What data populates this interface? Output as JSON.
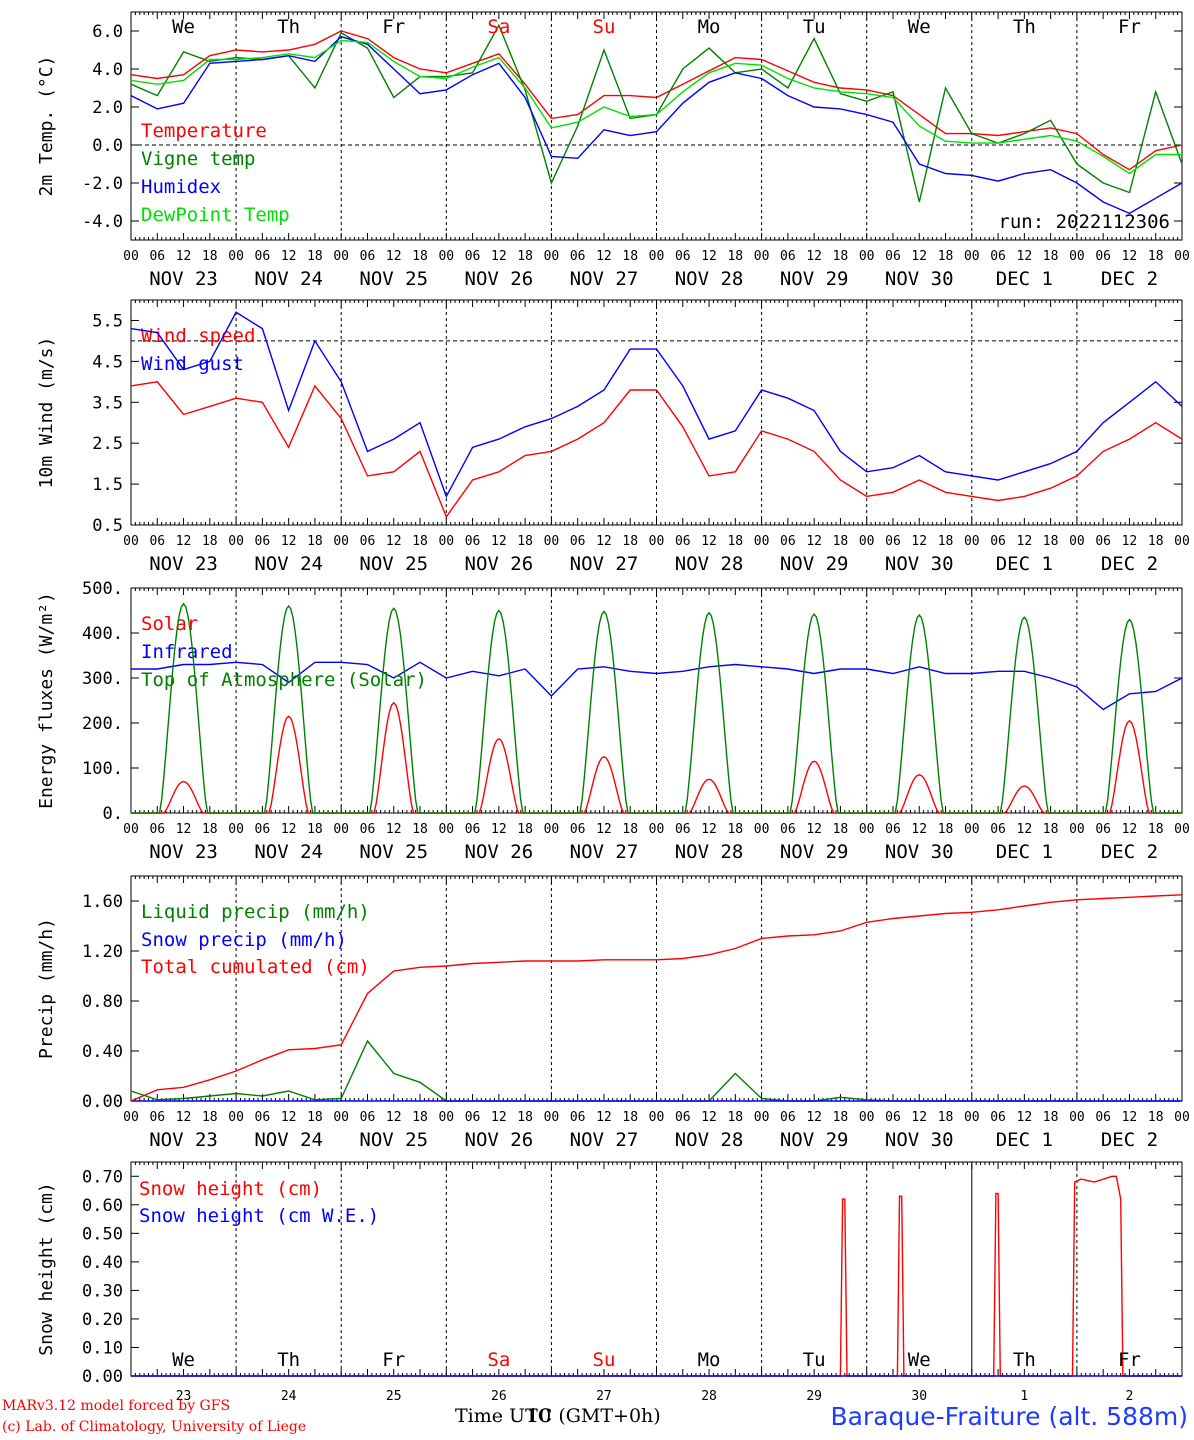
{
  "run_label": "run: 2022112306",
  "station": "Baraque-Fraiture (alt. 588m)",
  "credit_line1": "MARv3.12 model forced by GFS",
  "credit_line2": "(c) Lab. of Climatology, University of Liege",
  "time_axis_label": "Time UTC (GMT+0h)",
  "time_axis_overprint": "10",
  "hour_ticks": [
    "00",
    "06",
    "12",
    "18"
  ],
  "date_labels": [
    "NOV 23",
    "NOV 24",
    "NOV 25",
    "NOV 26",
    "NOV 27",
    "NOV 28",
    "NOV 29",
    "NOV 30",
    "DEC  1",
    "DEC  2"
  ],
  "weekday_labels": [
    "We",
    "Th",
    "Fr",
    "Sa",
    "Su",
    "Mo",
    "Tu",
    "We",
    "Th",
    "Fr"
  ],
  "weekday_colors": [
    "#000000",
    "#000000",
    "#000000",
    "#ff0000",
    "#ff0000",
    "#000000",
    "#000000",
    "#000000",
    "#000000",
    "#000000"
  ],
  "snow_day_numbers": [
    "23",
    "24",
    "25",
    "26",
    "27",
    "28",
    "29",
    "30",
    "1",
    "2"
  ],
  "colors": {
    "red": "#ff0000",
    "green": "#008000",
    "blue": "#0000ff",
    "lightgreen": "#00e000"
  },
  "chart_data": [
    {
      "type": "line",
      "ylabel": "2m Temp. (°C)",
      "ylim": [
        -5,
        7
      ],
      "yticks": [
        -4.0,
        -2.0,
        0.0,
        2.0,
        4.0,
        6.0
      ],
      "ytick_labels": [
        "-4.0",
        "-2.0",
        "0.0",
        "2.0",
        "4.0",
        "6.0"
      ],
      "ref_line": 0.0,
      "x_unit": "hours since NOV 23 00 UTC",
      "x": [
        0,
        6,
        12,
        18,
        24,
        30,
        36,
        42,
        48,
        54,
        60,
        66,
        72,
        78,
        84,
        90,
        96,
        102,
        108,
        114,
        120,
        126,
        132,
        138,
        144,
        150,
        156,
        162,
        168,
        174,
        180,
        186,
        192,
        198,
        204,
        210,
        216,
        222,
        228,
        234,
        240
      ],
      "series": [
        {
          "name": "Temperature",
          "color": "red",
          "values": [
            3.7,
            3.5,
            3.7,
            4.7,
            5.0,
            4.9,
            5.0,
            5.3,
            6.0,
            5.6,
            4.6,
            4.0,
            3.8,
            4.3,
            4.8,
            3.2,
            1.4,
            1.6,
            2.6,
            2.6,
            2.5,
            3.2,
            3.9,
            4.6,
            4.5,
            3.9,
            3.3,
            3.0,
            2.9,
            2.6,
            1.6,
            0.6,
            0.6,
            0.5,
            0.7,
            0.9,
            0.6,
            -0.5,
            -1.3,
            -0.3,
            0.0
          ]
        },
        {
          "name": "Vigne temp",
          "color": "green",
          "values": [
            3.2,
            2.6,
            4.9,
            4.4,
            4.6,
            4.5,
            4.7,
            3.0,
            5.9,
            5.1,
            2.5,
            3.6,
            3.6,
            3.8,
            6.3,
            2.9,
            -2.0,
            1.0,
            5.0,
            1.4,
            1.6,
            4.0,
            5.1,
            3.8,
            4.0,
            3.0,
            5.6,
            2.7,
            2.3,
            2.8,
            -3.0,
            3.0,
            0.6,
            0.1,
            0.6,
            1.3,
            -1.0,
            -2.0,
            -2.5,
            2.8,
            -1.0
          ]
        },
        {
          "name": "Humidex",
          "color": "blue",
          "values": [
            2.6,
            1.9,
            2.2,
            4.3,
            4.4,
            4.5,
            4.7,
            4.4,
            5.7,
            5.3,
            4.0,
            2.7,
            2.9,
            3.7,
            4.3,
            2.5,
            -0.6,
            -0.7,
            0.8,
            0.5,
            0.7,
            2.2,
            3.3,
            3.8,
            3.5,
            2.6,
            2.0,
            1.9,
            1.6,
            1.2,
            -1.0,
            -1.5,
            -1.6,
            -1.9,
            -1.5,
            -1.3,
            -2.0,
            -3.0,
            -3.6,
            -2.8,
            -2.0
          ]
        },
        {
          "name": "DewPoint Temp",
          "color": "lightgreen",
          "values": [
            3.4,
            3.2,
            3.4,
            4.5,
            4.5,
            4.6,
            4.8,
            4.6,
            5.5,
            5.4,
            4.4,
            3.6,
            3.5,
            4.1,
            4.6,
            3.0,
            0.9,
            1.2,
            2.0,
            1.5,
            1.6,
            2.8,
            3.8,
            4.3,
            4.2,
            3.5,
            3.0,
            2.8,
            2.7,
            2.5,
            1.0,
            0.2,
            0.1,
            0.1,
            0.3,
            0.5,
            0.2,
            -0.6,
            -1.5,
            -0.5,
            -0.5
          ]
        }
      ]
    },
    {
      "type": "line",
      "ylabel": "10m Wind (m/s)",
      "ylim": [
        0.5,
        6.0
      ],
      "yticks": [
        0.5,
        1.5,
        2.5,
        3.5,
        4.5,
        5.5
      ],
      "ytick_labels": [
        "0.5",
        "1.5",
        "2.5",
        "3.5",
        "4.5",
        "5.5"
      ],
      "ref_line": 5.0,
      "x_unit": "hours since NOV 23 00 UTC",
      "x": [
        0,
        6,
        12,
        18,
        24,
        30,
        36,
        42,
        48,
        54,
        60,
        66,
        72,
        78,
        84,
        90,
        96,
        102,
        108,
        114,
        120,
        126,
        132,
        138,
        144,
        150,
        156,
        162,
        168,
        174,
        180,
        186,
        192,
        198,
        204,
        210,
        216,
        222,
        228,
        234,
        240
      ],
      "series": [
        {
          "name": "Wind speed",
          "color": "red",
          "values": [
            3.9,
            4.0,
            3.2,
            3.4,
            3.6,
            3.5,
            2.4,
            3.9,
            3.1,
            1.7,
            1.8,
            2.3,
            0.7,
            1.6,
            1.8,
            2.2,
            2.3,
            2.6,
            3.0,
            3.8,
            3.8,
            2.9,
            1.7,
            1.8,
            2.8,
            2.6,
            2.3,
            1.6,
            1.2,
            1.3,
            1.6,
            1.3,
            1.2,
            1.1,
            1.2,
            1.4,
            1.7,
            2.3,
            2.6,
            3.0,
            2.6
          ]
        },
        {
          "name": "Wind gust",
          "color": "blue",
          "values": [
            5.3,
            5.2,
            4.3,
            4.5,
            5.7,
            5.3,
            3.3,
            5.0,
            4.0,
            2.3,
            2.6,
            3.0,
            1.2,
            2.4,
            2.6,
            2.9,
            3.1,
            3.4,
            3.8,
            4.8,
            4.8,
            3.9,
            2.6,
            2.8,
            3.8,
            3.6,
            3.3,
            2.3,
            1.8,
            1.9,
            2.2,
            1.8,
            1.7,
            1.6,
            1.8,
            2.0,
            2.3,
            3.0,
            3.5,
            4.0,
            3.4
          ]
        }
      ]
    },
    {
      "type": "line",
      "ylabel": "Energy fluxes (W/m²)",
      "ylim": [
        0,
        500
      ],
      "yticks": [
        0,
        100,
        200,
        300,
        400,
        500
      ],
      "ytick_labels": [
        "0.",
        "100.",
        "200.",
        "300.",
        "400.",
        "500."
      ],
      "x_unit": "hours since NOV 23 00 UTC",
      "infrared_x": [
        0,
        6,
        12,
        18,
        24,
        30,
        36,
        42,
        48,
        54,
        60,
        66,
        72,
        78,
        84,
        90,
        96,
        102,
        108,
        114,
        120,
        126,
        132,
        138,
        144,
        150,
        156,
        162,
        168,
        174,
        180,
        186,
        192,
        198,
        204,
        210,
        216,
        222,
        228,
        234,
        240
      ],
      "series": [
        {
          "name": "Solar",
          "color": "red",
          "peaks": [
            70,
            215,
            245,
            165,
            125,
            75,
            115,
            85,
            60,
            205
          ]
        },
        {
          "name": "Infrared",
          "color": "blue",
          "values": [
            320,
            320,
            330,
            330,
            335,
            330,
            290,
            335,
            335,
            330,
            300,
            335,
            300,
            315,
            305,
            320,
            260,
            320,
            325,
            315,
            310,
            315,
            325,
            330,
            325,
            320,
            310,
            320,
            320,
            310,
            325,
            310,
            310,
            315,
            315,
            300,
            280,
            230,
            265,
            270,
            300
          ]
        },
        {
          "name": "Top of Atmosphere (Solar)",
          "color": "green",
          "peaks": [
            465,
            460,
            455,
            450,
            448,
            445,
            442,
            440,
            435,
            430
          ]
        }
      ]
    },
    {
      "type": "line",
      "ylabel": "Precip (mm/h)",
      "ylim": [
        0,
        1.8
      ],
      "yticks": [
        0,
        0.4,
        0.8,
        1.2,
        1.6
      ],
      "ytick_labels": [
        "0.00",
        "0.40",
        "0.80",
        "1.20",
        "1.60"
      ],
      "x_unit": "hours since NOV 23 00 UTC",
      "x": [
        0,
        6,
        12,
        18,
        24,
        30,
        36,
        42,
        48,
        54,
        60,
        66,
        72,
        78,
        84,
        90,
        96,
        102,
        108,
        114,
        120,
        126,
        132,
        138,
        144,
        150,
        156,
        162,
        168,
        174,
        180,
        186,
        192,
        198,
        204,
        210,
        216,
        222,
        228,
        234,
        240
      ],
      "series": [
        {
          "name": "Liquid precip (mm/h)",
          "color": "green",
          "values": [
            0.08,
            0.01,
            0.02,
            0.04,
            0.06,
            0.04,
            0.08,
            0.01,
            0.02,
            0.48,
            0.22,
            0.15,
            0.0,
            0.0,
            0.0,
            0.0,
            0.0,
            0.0,
            0.0,
            0.0,
            0.0,
            0.0,
            0.0,
            0.22,
            0.02,
            0.0,
            0.0,
            0.03,
            0.01,
            0.0,
            0.0,
            0.0,
            0.0,
            0.0,
            0.0,
            0.0,
            0.0,
            0.0,
            0.0,
            0.0,
            0.0
          ]
        },
        {
          "name": "Snow precip (mm/h)",
          "color": "blue",
          "values": [
            0,
            0,
            0,
            0,
            0,
            0,
            0,
            0,
            0,
            0,
            0,
            0,
            0,
            0,
            0,
            0,
            0,
            0,
            0,
            0,
            0,
            0,
            0,
            0,
            0,
            0,
            0,
            0,
            0,
            0,
            0,
            0,
            0,
            0,
            0,
            0,
            0,
            0,
            0,
            0,
            0
          ]
        },
        {
          "name": "Total cumulated (cm)",
          "color": "red",
          "values": [
            0.0,
            0.09,
            0.11,
            0.17,
            0.24,
            0.33,
            0.41,
            0.42,
            0.45,
            0.86,
            1.04,
            1.07,
            1.08,
            1.1,
            1.11,
            1.12,
            1.12,
            1.12,
            1.13,
            1.13,
            1.13,
            1.14,
            1.17,
            1.22,
            1.3,
            1.32,
            1.33,
            1.36,
            1.43,
            1.46,
            1.48,
            1.5,
            1.51,
            1.53,
            1.56,
            1.59,
            1.61,
            1.62,
            1.63,
            1.64,
            1.65
          ]
        }
      ]
    },
    {
      "type": "line",
      "ylabel": "Snow height (cm)",
      "ylim": [
        0,
        0.75
      ],
      "yticks": [
        0,
        0.1,
        0.2,
        0.3,
        0.4,
        0.5,
        0.6,
        0.7
      ],
      "ytick_labels": [
        "0.00",
        "0.10",
        "0.20",
        "0.30",
        "0.40",
        "0.50",
        "0.60",
        "0.70"
      ],
      "x_unit": "hours since NOV 23 00 UTC",
      "x": [
        0,
        162,
        162.5,
        163,
        163.5,
        175,
        175.5,
        176,
        176.5,
        197,
        197.5,
        198,
        198.5,
        215,
        215.5,
        217,
        220,
        224,
        225,
        226,
        226.5,
        240
      ],
      "series": [
        {
          "name": "Snow height (cm)",
          "color": "red",
          "values": [
            0,
            0,
            0.62,
            0.62,
            0,
            0,
            0.63,
            0.63,
            0,
            0,
            0.64,
            0.64,
            0,
            0,
            0.68,
            0.69,
            0.68,
            0.7,
            0.7,
            0.62,
            0,
            0
          ]
        },
        {
          "name": "Snow height (cm W.E.)",
          "color": "blue",
          "values": [
            0,
            0,
            0,
            0,
            0,
            0,
            0,
            0,
            0,
            0,
            0,
            0,
            0,
            0,
            0,
            0,
            0,
            0,
            0,
            0,
            0,
            0
          ]
        }
      ]
    }
  ]
}
